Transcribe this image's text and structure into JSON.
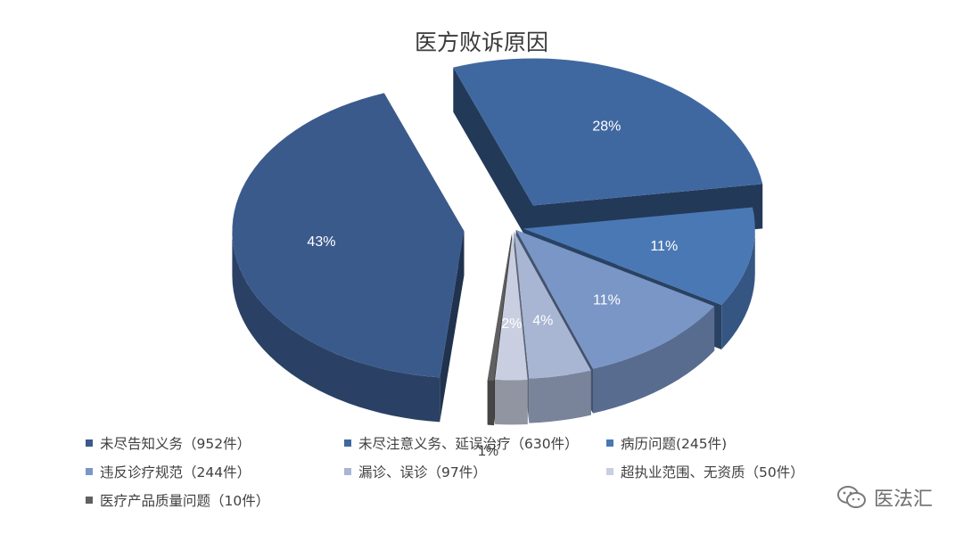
{
  "chart_data": {
    "type": "pie",
    "variant": "3d-exploded",
    "title": "医方败诉原因",
    "slices": [
      {
        "label": "未尽告知义务（952件）",
        "value": 952,
        "percent_label": "43%",
        "color": "#3b5a8c"
      },
      {
        "label": "未尽注意义务、延误治疗（630件）",
        "value": 630,
        "percent_label": "28%",
        "color": "#4068a0"
      },
      {
        "label": "病历问题(245件)",
        "value": 245,
        "percent_label": "11%",
        "color": "#4a78b4"
      },
      {
        "label": "违反诊疗规范（244件）",
        "value": 244,
        "percent_label": "11%",
        "color": "#7a96c6"
      },
      {
        "label": "漏诊、误诊（97件）",
        "value": 97,
        "percent_label": "4%",
        "color": "#a8b6d4"
      },
      {
        "label": "超执业范围、无资质（50件）",
        "value": 50,
        "percent_label": "2%",
        "color": "#c9cfe0"
      },
      {
        "label": "医疗产品质量问题（10件）",
        "value": 10,
        "percent_label": "1%",
        "color": "#606060"
      }
    ],
    "legend_position": "bottom"
  },
  "watermark": {
    "text": "医法汇",
    "icon": "wechat-icon"
  }
}
